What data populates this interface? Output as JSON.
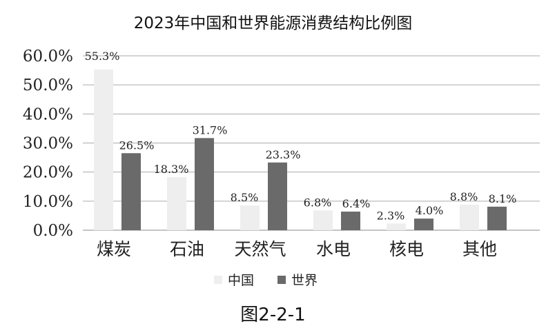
{
  "chart_data": {
    "type": "bar",
    "title": "2023年中国和世界能源消费结构比例图",
    "categories": [
      "煤炭",
      "石油",
      "天然气",
      "水电",
      "核电",
      "其他"
    ],
    "series": [
      {
        "name": "中国",
        "values": [
          55.3,
          18.3,
          8.5,
          6.8,
          2.3,
          8.8
        ],
        "labels": [
          "55.3%",
          "18.3%",
          "8.5%",
          "6.8%",
          "2.3%",
          "8.8%"
        ],
        "color": "#eeeeee"
      },
      {
        "name": "世界",
        "values": [
          26.5,
          31.7,
          23.3,
          6.4,
          4.0,
          8.1
        ],
        "labels": [
          "26.5%",
          "31.7%",
          "23.3%",
          "6.4%",
          "4.0%",
          "8.1%"
        ],
        "color": "#6a6a6a"
      }
    ],
    "yticks": [
      "0.0%",
      "10.0%",
      "20.0%",
      "30.0%",
      "40.0%",
      "50.0%",
      "60.0%"
    ],
    "ylim": [
      0,
      60
    ],
    "grid": true,
    "legend": "bottom",
    "xlabel": "",
    "ylabel": ""
  },
  "caption": "图2-2-1"
}
